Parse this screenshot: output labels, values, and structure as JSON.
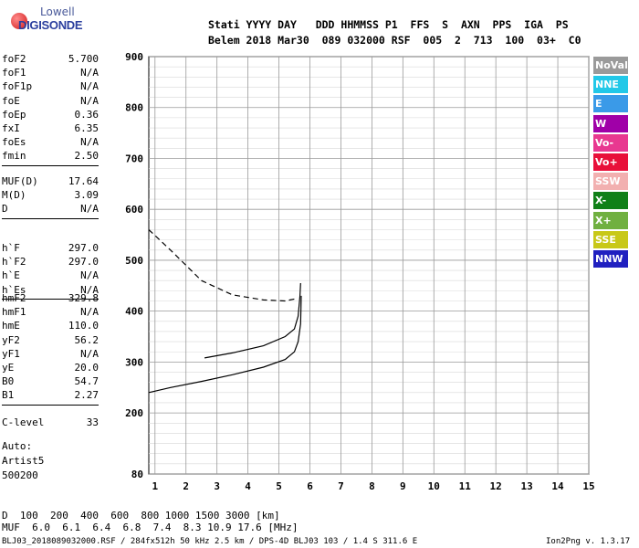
{
  "logo": {
    "line1": "Lowell",
    "line2": "DIGISONDE"
  },
  "header": {
    "row1": "Stati YYYY DAY   DDD HHMMSS P1  FFS  S  AXN  PPS  IGA  PS",
    "row2": "Belem 2018 Mar30  089 032000 RSF  005  2  713  100  03+  C0"
  },
  "parameters": {
    "group1": [
      {
        "name": "foF2",
        "value": "5.700"
      },
      {
        "name": "foF1",
        "value": "N/A"
      },
      {
        "name": "foF1p",
        "value": "N/A"
      },
      {
        "name": "foE",
        "value": "N/A"
      },
      {
        "name": "foEp",
        "value": "0.36"
      },
      {
        "name": "fxI",
        "value": "6.35"
      },
      {
        "name": "foEs",
        "value": "N/A"
      },
      {
        "name": "fmin",
        "value": "2.50"
      }
    ],
    "group2": [
      {
        "name": "MUF(D)",
        "value": "17.64"
      },
      {
        "name": "M(D)",
        "value": "3.09"
      },
      {
        "name": "D",
        "value": "N/A"
      }
    ],
    "group3": [
      {
        "name": "h`F",
        "value": "297.0"
      },
      {
        "name": "h`F2",
        "value": "297.0"
      },
      {
        "name": "h`E",
        "value": "N/A"
      },
      {
        "name": "h`Es",
        "value": "N/A"
      }
    ],
    "group4": [
      {
        "name": "hmF2",
        "value": "329.8"
      },
      {
        "name": "hmF1",
        "value": "N/A"
      },
      {
        "name": "hmE",
        "value": "110.0"
      },
      {
        "name": "yF2",
        "value": "56.2"
      },
      {
        "name": "yF1",
        "value": "N/A"
      },
      {
        "name": "yE",
        "value": "20.0"
      },
      {
        "name": "B0",
        "value": "54.7"
      },
      {
        "name": "B1",
        "value": "2.27"
      }
    ],
    "group5": [
      {
        "name": "C-level",
        "value": "33"
      }
    ]
  },
  "scaling": {
    "line1": "Auto:",
    "line2": "Artist5",
    "line3": "500200"
  },
  "legend": [
    {
      "label": "NoVal",
      "color": "#9a9a9a"
    },
    {
      "label": "NNE",
      "color": "#22c8e8"
    },
    {
      "label": "E",
      "color": "#3a9ae8"
    },
    {
      "label": "W",
      "color": "#a000a8"
    },
    {
      "label": "Vo-",
      "color": "#e83890"
    },
    {
      "label": "Vo+",
      "color": "#e8103a"
    },
    {
      "label": "SSW",
      "color": "#f2b0b0"
    },
    {
      "label": "X-",
      "color": "#108018"
    },
    {
      "label": "X+",
      "color": "#70b040"
    },
    {
      "label": "SSE",
      "color": "#c8c818"
    },
    {
      "label": "NNW",
      "color": "#2020c0"
    }
  ],
  "muf_table": {
    "d_label": "D",
    "d_values": "  100  200  400  600  800 1000 1500 3000 [km]",
    "muf_label": "MUF",
    "muf_values": "  6.0  6.1  6.4  6.8  7.4  8.3 10.9 17.6 [MHz]"
  },
  "footer": {
    "left": "BLJ03_2018089032000.RSF / 284fx512h 50 kHz 2.5 km / DPS-4D BLJ03 103 / 1.4 S 311.6 E",
    "right": "Ion2Png v. 1.3.17"
  },
  "chart_data": {
    "type": "scatter",
    "title": "",
    "xlabel": "",
    "ylabel": "",
    "xlim": [
      0.8,
      15.0
    ],
    "ylim": [
      80,
      900
    ],
    "x_ticks": [
      1,
      2,
      3,
      4,
      5,
      6,
      7,
      8,
      9,
      10,
      11,
      12,
      13,
      14,
      15
    ],
    "y_ticks": [
      80,
      200,
      300,
      400,
      500,
      600,
      700,
      800,
      900
    ],
    "grid": true,
    "series": [
      {
        "name": "profile",
        "style": "solid",
        "points": [
          [
            0.8,
            240
          ],
          [
            1.5,
            250
          ],
          [
            2.5,
            262
          ],
          [
            3.5,
            275
          ],
          [
            4.5,
            290
          ],
          [
            5.2,
            305
          ],
          [
            5.5,
            320
          ],
          [
            5.62,
            340
          ],
          [
            5.7,
            375
          ],
          [
            5.72,
            430
          ]
        ]
      },
      {
        "name": "trace",
        "style": "solid",
        "points": [
          [
            2.6,
            308
          ],
          [
            3.5,
            318
          ],
          [
            4.5,
            332
          ],
          [
            5.2,
            350
          ],
          [
            5.5,
            365
          ],
          [
            5.62,
            390
          ],
          [
            5.68,
            430
          ],
          [
            5.7,
            455
          ]
        ]
      },
      {
        "name": "extrapolation",
        "style": "dashed",
        "points": [
          [
            0.8,
            560
          ],
          [
            1.5,
            520
          ],
          [
            2.5,
            460
          ],
          [
            3.5,
            432
          ],
          [
            4.5,
            422
          ],
          [
            5.2,
            420
          ],
          [
            5.6,
            425
          ]
        ]
      }
    ]
  }
}
